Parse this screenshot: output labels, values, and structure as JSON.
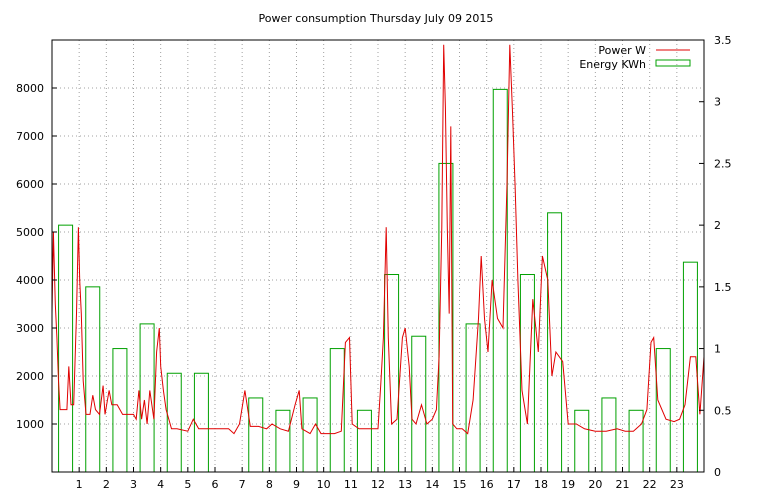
{
  "chart_data": {
    "type": "line",
    "title": "Power consumption Thursday July 09 2015",
    "x_ticks": [
      "1",
      "2",
      "3",
      "4",
      "5",
      "6",
      "7",
      "8",
      "9",
      "10",
      "11",
      "12",
      "13",
      "14",
      "15",
      "16",
      "17",
      "18",
      "19",
      "20",
      "21",
      "22",
      "23"
    ],
    "xlim": [
      0,
      24
    ],
    "y_left": {
      "ticks": [
        "1000",
        "2000",
        "3000",
        "4000",
        "5000",
        "6000",
        "7000",
        "8000"
      ],
      "range": [
        0,
        9000
      ]
    },
    "y_right": {
      "ticks": [
        "0",
        "0.5",
        "1",
        "1.5",
        "2",
        "2.5",
        "3",
        "3.5"
      ],
      "range": [
        0,
        3.5
      ]
    },
    "grid": true,
    "legend_position": "top-right",
    "colors": {
      "power": "#e00000",
      "energy": "#00a000"
    },
    "series": [
      {
        "name": "Power W",
        "axis": "left",
        "points": [
          [
            0.0,
            3300
          ],
          [
            0.05,
            5000
          ],
          [
            0.12,
            3500
          ],
          [
            0.18,
            2800
          ],
          [
            0.24,
            1900
          ],
          [
            0.3,
            1300
          ],
          [
            0.45,
            1300
          ],
          [
            0.55,
            1300
          ],
          [
            0.62,
            2200
          ],
          [
            0.7,
            1400
          ],
          [
            0.8,
            1400
          ],
          [
            0.9,
            3300
          ],
          [
            0.97,
            5100
          ],
          [
            1.02,
            4000
          ],
          [
            1.08,
            3300
          ],
          [
            1.15,
            1900
          ],
          [
            1.25,
            1200
          ],
          [
            1.4,
            1200
          ],
          [
            1.5,
            1600
          ],
          [
            1.6,
            1300
          ],
          [
            1.75,
            1200
          ],
          [
            1.88,
            1800
          ],
          [
            1.95,
            1200
          ],
          [
            2.1,
            1700
          ],
          [
            2.2,
            1400
          ],
          [
            2.4,
            1400
          ],
          [
            2.6,
            1200
          ],
          [
            2.8,
            1200
          ],
          [
            3.0,
            1200
          ],
          [
            3.1,
            1100
          ],
          [
            3.2,
            1700
          ],
          [
            3.3,
            1100
          ],
          [
            3.4,
            1500
          ],
          [
            3.5,
            1000
          ],
          [
            3.6,
            1700
          ],
          [
            3.75,
            1100
          ],
          [
            3.85,
            2500
          ],
          [
            3.95,
            3000
          ],
          [
            4.0,
            2200
          ],
          [
            4.1,
            1700
          ],
          [
            4.2,
            1300
          ],
          [
            4.4,
            900
          ],
          [
            4.6,
            900
          ],
          [
            5.0,
            850
          ],
          [
            5.2,
            1100
          ],
          [
            5.4,
            900
          ],
          [
            5.7,
            900
          ],
          [
            6.0,
            900
          ],
          [
            6.5,
            900
          ],
          [
            6.7,
            800
          ],
          [
            6.9,
            1000
          ],
          [
            7.1,
            1700
          ],
          [
            7.3,
            950
          ],
          [
            7.6,
            950
          ],
          [
            7.9,
            900
          ],
          [
            8.1,
            1000
          ],
          [
            8.4,
            900
          ],
          [
            8.7,
            850
          ],
          [
            8.95,
            1400
          ],
          [
            9.1,
            1700
          ],
          [
            9.2,
            900
          ],
          [
            9.5,
            800
          ],
          [
            9.7,
            1000
          ],
          [
            9.9,
            800
          ],
          [
            10.1,
            800
          ],
          [
            10.4,
            800
          ],
          [
            10.65,
            850
          ],
          [
            10.8,
            2700
          ],
          [
            10.95,
            2800
          ],
          [
            11.05,
            1000
          ],
          [
            11.3,
            900
          ],
          [
            11.5,
            900
          ],
          [
            11.8,
            900
          ],
          [
            12.0,
            900
          ],
          [
            12.1,
            1800
          ],
          [
            12.2,
            2800
          ],
          [
            12.3,
            5100
          ],
          [
            12.38,
            2800
          ],
          [
            12.5,
            1000
          ],
          [
            12.7,
            1100
          ],
          [
            12.9,
            2800
          ],
          [
            13.0,
            3000
          ],
          [
            13.15,
            2200
          ],
          [
            13.25,
            1100
          ],
          [
            13.4,
            1000
          ],
          [
            13.6,
            1400
          ],
          [
            13.8,
            1000
          ],
          [
            14.0,
            1100
          ],
          [
            14.15,
            1300
          ],
          [
            14.25,
            2400
          ],
          [
            14.35,
            5100
          ],
          [
            14.42,
            8900
          ],
          [
            14.48,
            7600
          ],
          [
            14.55,
            5100
          ],
          [
            14.62,
            3300
          ],
          [
            14.68,
            7200
          ],
          [
            14.75,
            1000
          ],
          [
            14.9,
            900
          ],
          [
            15.1,
            900
          ],
          [
            15.3,
            800
          ],
          [
            15.5,
            1500
          ],
          [
            15.7,
            3200
          ],
          [
            15.8,
            4500
          ],
          [
            15.92,
            3200
          ],
          [
            16.05,
            2500
          ],
          [
            16.2,
            4000
          ],
          [
            16.4,
            3200
          ],
          [
            16.6,
            3000
          ],
          [
            16.75,
            6000
          ],
          [
            16.85,
            8900
          ],
          [
            16.95,
            7500
          ],
          [
            17.05,
            5900
          ],
          [
            17.15,
            4000
          ],
          [
            17.3,
            1700
          ],
          [
            17.5,
            1000
          ],
          [
            17.7,
            3600
          ],
          [
            17.9,
            2500
          ],
          [
            18.05,
            4500
          ],
          [
            18.25,
            4000
          ],
          [
            18.4,
            2000
          ],
          [
            18.55,
            2500
          ],
          [
            18.8,
            2300
          ],
          [
            19.0,
            1000
          ],
          [
            19.3,
            1000
          ],
          [
            19.6,
            900
          ],
          [
            20.0,
            850
          ],
          [
            20.4,
            850
          ],
          [
            20.8,
            900
          ],
          [
            21.1,
            850
          ],
          [
            21.4,
            850
          ],
          [
            21.7,
            1000
          ],
          [
            21.9,
            1300
          ],
          [
            22.05,
            2700
          ],
          [
            22.15,
            2800
          ],
          [
            22.3,
            1500
          ],
          [
            22.6,
            1100
          ],
          [
            22.9,
            1050
          ],
          [
            23.1,
            1100
          ],
          [
            23.3,
            1400
          ],
          [
            23.5,
            2400
          ],
          [
            23.7,
            2400
          ],
          [
            23.85,
            1200
          ],
          [
            24.0,
            2400
          ]
        ]
      },
      {
        "name": "Energy KWh",
        "axis": "right",
        "style": "boxes",
        "values": [
          2.0,
          1.5,
          1.0,
          1.2,
          0.8,
          0.8,
          0.0,
          0.6,
          0.5,
          0.6,
          1.0,
          0.5,
          1.6,
          1.1,
          2.5,
          1.2,
          3.1,
          1.6,
          2.1,
          0.5,
          0.6,
          0.5,
          1.0,
          1.7
        ]
      }
    ]
  }
}
